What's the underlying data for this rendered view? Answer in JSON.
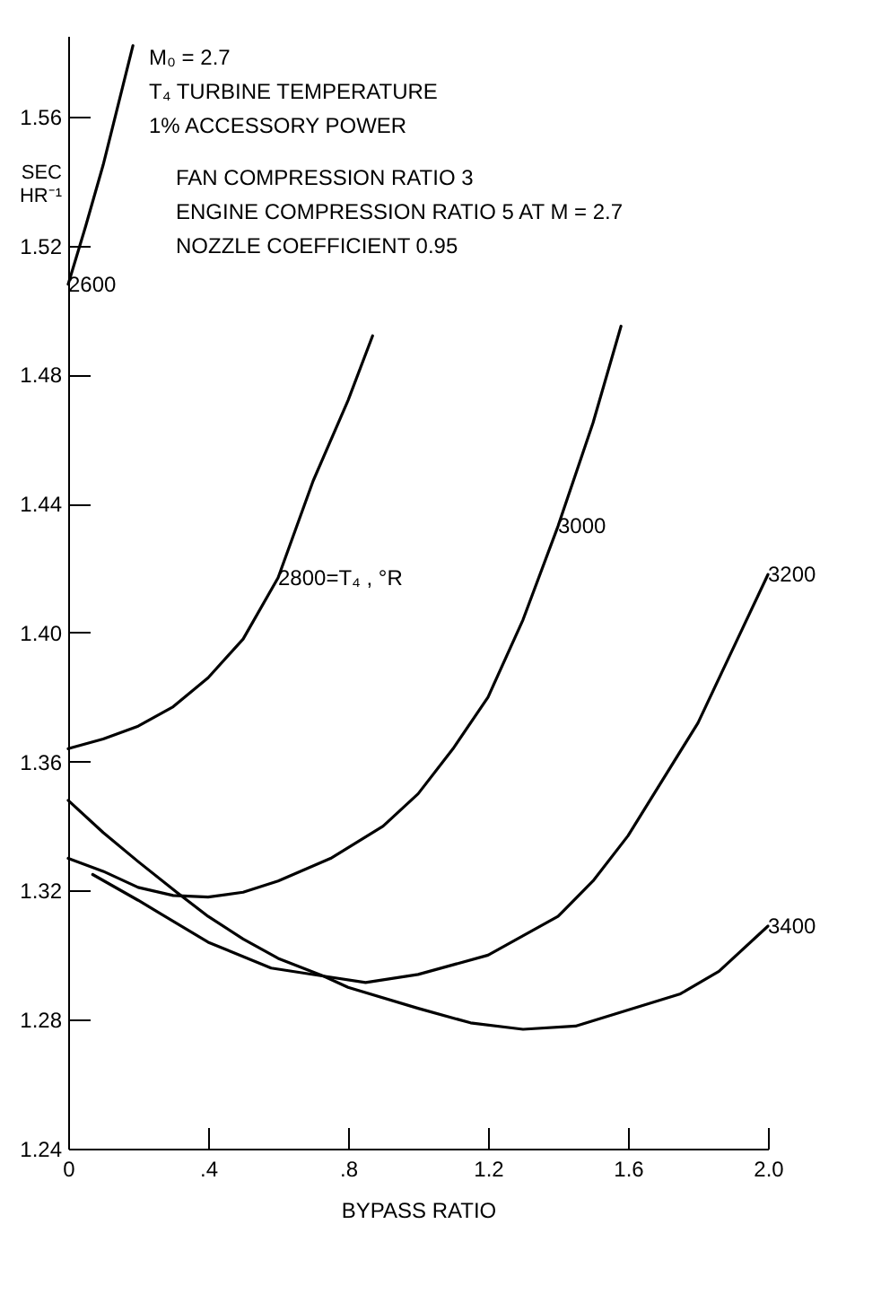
{
  "chart_data": {
    "type": "line",
    "xlabel": "BYPASS RATIO",
    "ylabel": "SEC HR⁻¹",
    "annotations": [
      "M₀ = 2.7",
      "T₄  TURBINE TEMPERATURE",
      "1% ACCESSORY POWER",
      "FAN COMPRESSION RATIO 3",
      "ENGINE COMPRESSION RATIO 5  AT M = 2.7",
      "NOZZLE COEFFICIENT 0.95"
    ],
    "xlim": [
      0,
      2.0
    ],
    "xticks": [
      0,
      {
        "value": 0.4,
        "label": ".4"
      },
      {
        "value": 0.8,
        "label": ".8"
      },
      1.2,
      1.6,
      {
        "value": 2.0,
        "label": "2.0"
      }
    ],
    "ylim": [
      1.24,
      1.585
    ],
    "yticks": [
      1.24,
      1.28,
      1.32,
      1.36,
      {
        "value": 1.4,
        "label": "1.40"
      },
      1.44,
      1.48,
      1.52,
      1.56
    ],
    "grid": false,
    "legend": false,
    "marker": "none",
    "line_style": "solid",
    "series": [
      {
        "name": "2600",
        "color": "#000000",
        "x": [
          0,
          0.05,
          0.1,
          0.185
        ],
        "values": [
          1.508,
          1.526,
          1.545,
          1.582
        ]
      },
      {
        "name": "2800=T₄ , °R",
        "color": "#000000",
        "x": [
          0,
          0.1,
          0.2,
          0.3,
          0.4,
          0.5,
          0.6,
          0.7,
          0.8,
          0.87
        ],
        "values": [
          1.364,
          1.367,
          1.371,
          1.377,
          1.386,
          1.398,
          1.417,
          1.447,
          1.472,
          1.492
        ]
      },
      {
        "name": "3000",
        "color": "#000000",
        "x": [
          0,
          0.1,
          0.2,
          0.3,
          0.4,
          0.5,
          0.6,
          0.75,
          0.9,
          1.0,
          1.1,
          1.2,
          1.3,
          1.4,
          1.5,
          1.58
        ],
        "values": [
          1.33,
          1.326,
          1.321,
          1.3185,
          1.318,
          1.3195,
          1.323,
          1.33,
          1.34,
          1.35,
          1.364,
          1.38,
          1.404,
          1.433,
          1.465,
          1.495
        ]
      },
      {
        "name": "3200",
        "color": "#000000",
        "x": [
          0,
          0.1,
          0.2,
          0.31,
          0.4,
          0.5,
          0.6,
          0.73,
          0.85,
          1.0,
          1.2,
          1.4,
          1.5,
          1.6,
          1.8,
          1.9,
          2.0
        ],
        "values": [
          1.348,
          1.338,
          1.329,
          1.3195,
          1.312,
          1.305,
          1.299,
          1.2935,
          1.2915,
          1.294,
          1.3,
          1.312,
          1.323,
          1.337,
          1.372,
          1.395,
          1.418
        ]
      },
      {
        "name": "3400",
        "color": "#000000",
        "x": [
          0.07,
          0.2,
          0.4,
          0.58,
          0.73,
          0.8,
          1.0,
          1.15,
          1.3,
          1.45,
          1.6,
          1.75,
          1.86,
          2.0
        ],
        "values": [
          1.325,
          1.317,
          1.304,
          1.296,
          1.2935,
          1.29,
          1.2835,
          1.279,
          1.277,
          1.278,
          1.283,
          1.288,
          1.295,
          1.309
        ]
      }
    ]
  }
}
